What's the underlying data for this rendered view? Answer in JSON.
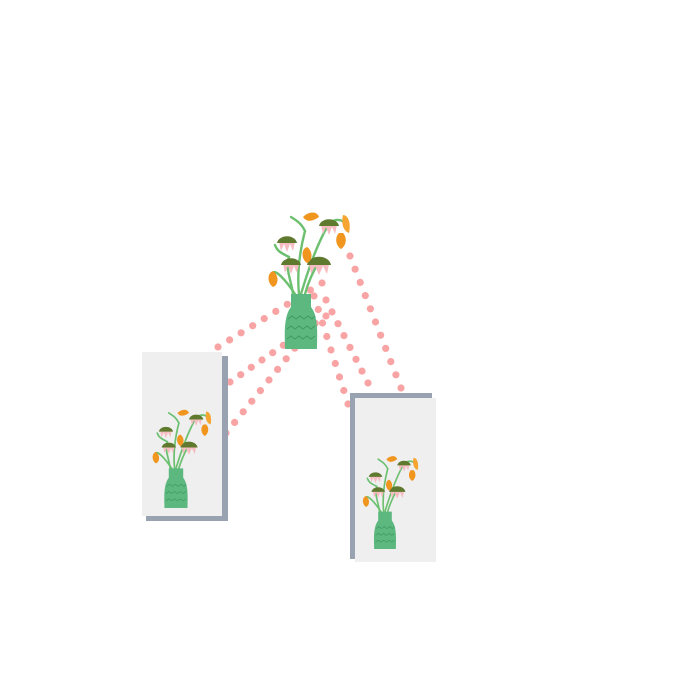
{
  "illustration": {
    "subject": "flower-vase-projection",
    "colors": {
      "background": "#ffffff",
      "card": "#efefef",
      "card_shadow": "#98a2b0",
      "dots": "#f8a4a4",
      "vase": "#5cb87f",
      "vase_pattern": "#3f9a63",
      "stem": "#6cc070",
      "leaf": "#5f7a2e",
      "petal_pink": "#f6bcc2",
      "petal_orange": "#f0951e",
      "petal_orange_light": "#f5a530"
    },
    "icons": [
      "vase-icon",
      "flower-icon",
      "card-icon"
    ]
  }
}
